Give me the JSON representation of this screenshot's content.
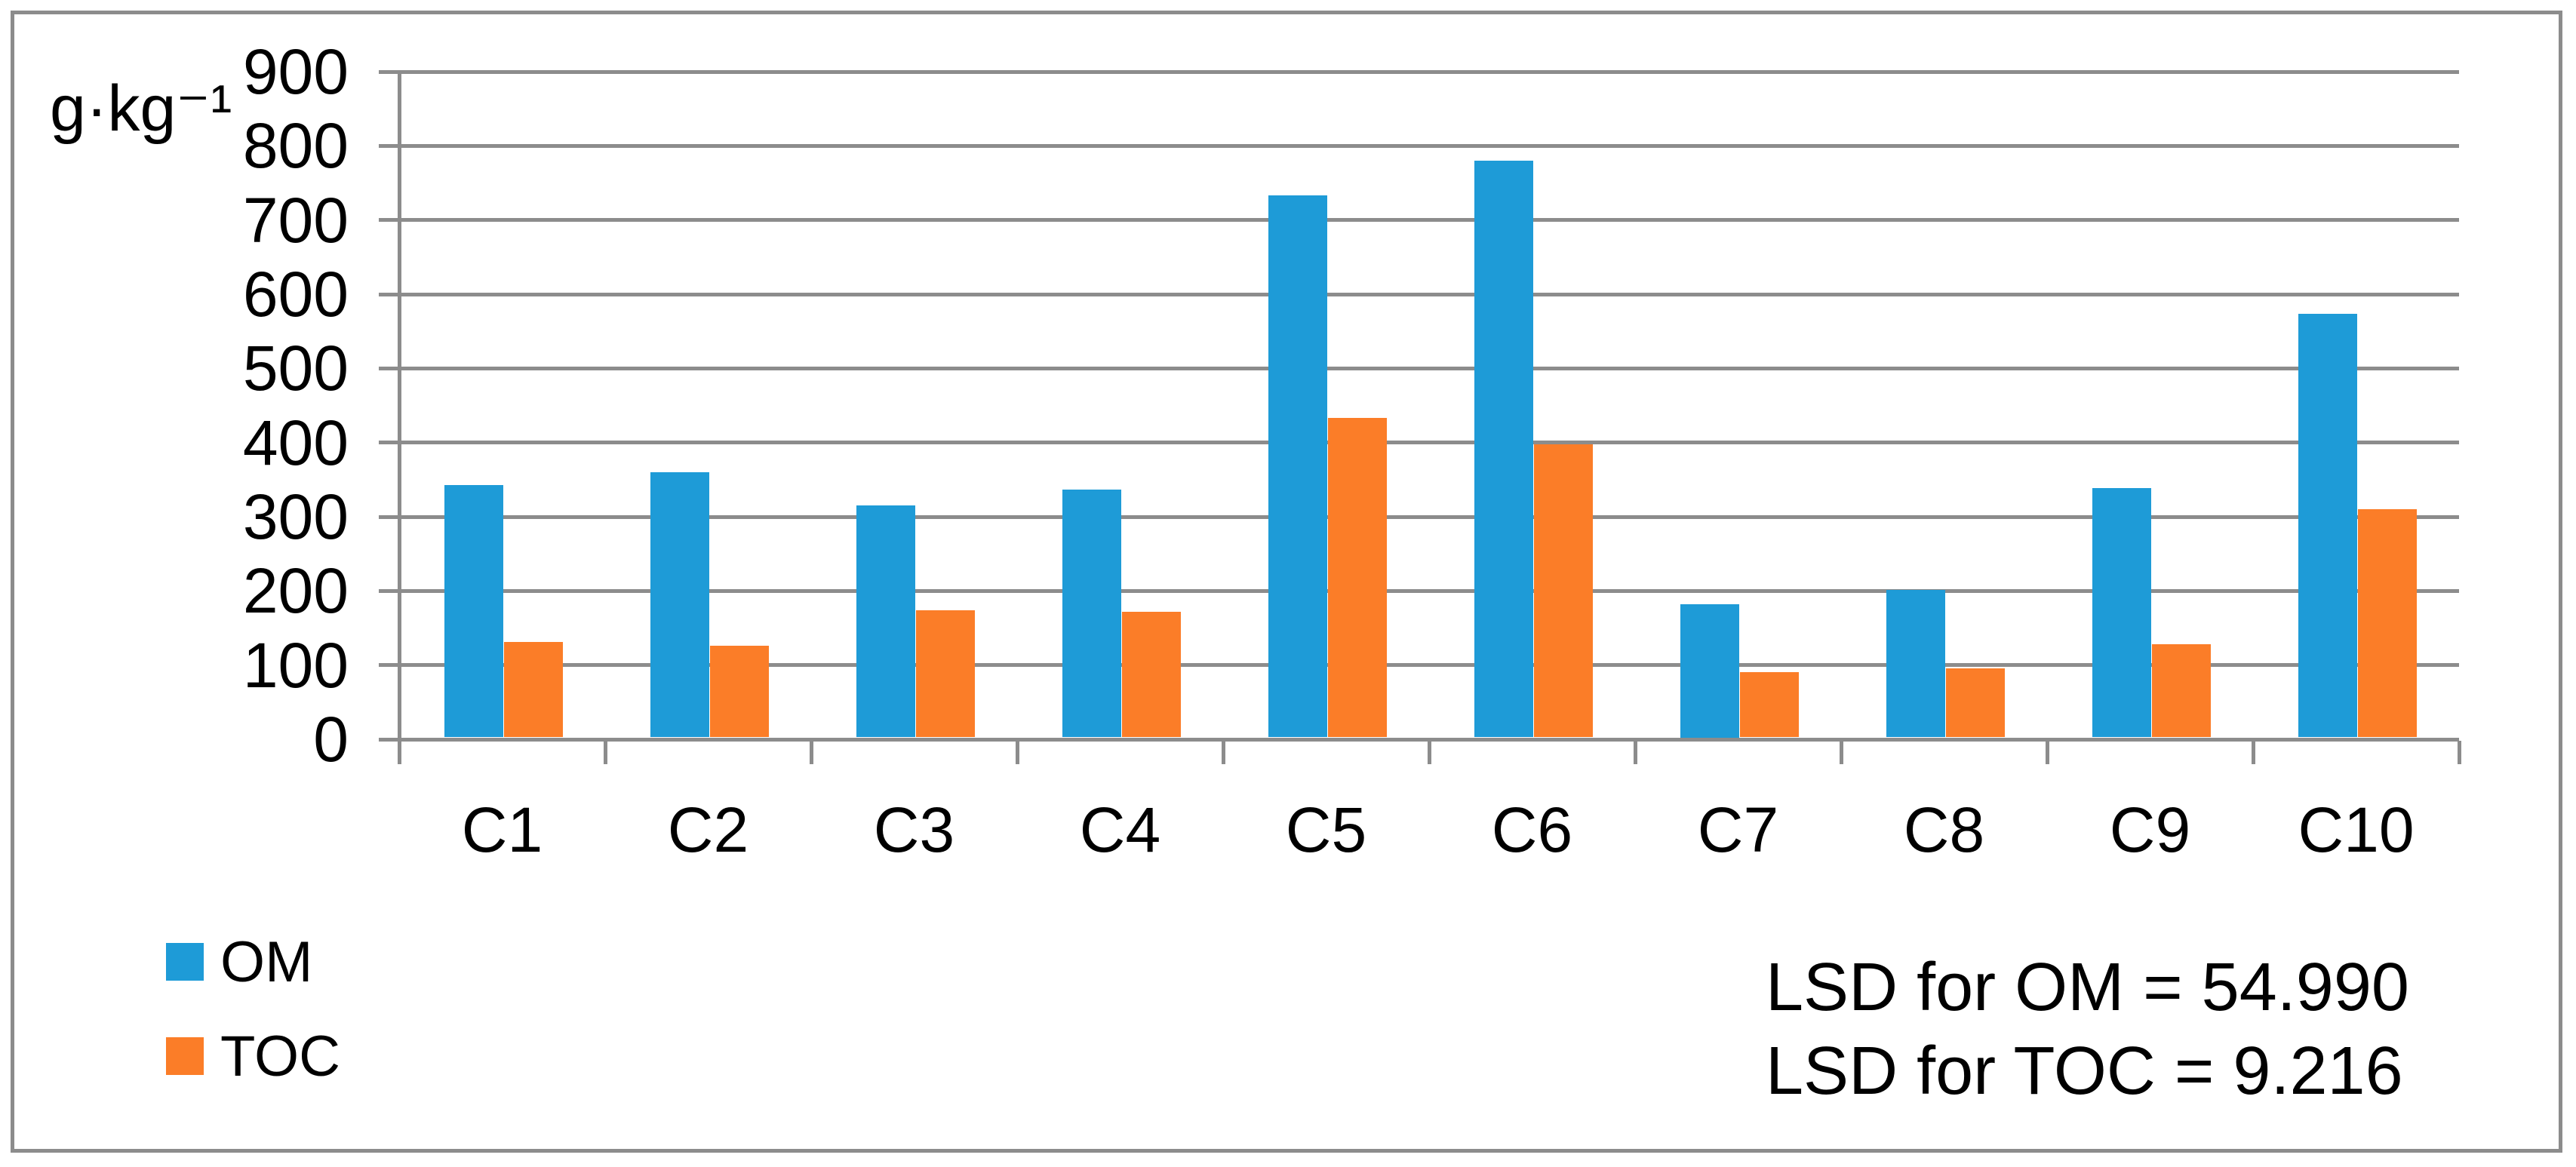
{
  "chart_data": {
    "type": "bar",
    "title": "",
    "ylabel": "g·kg⁻¹",
    "xlabel": "",
    "categories": [
      "C1",
      "C2",
      "C3",
      "C4",
      "C5",
      "C6",
      "C7",
      "C8",
      "C9",
      "C10"
    ],
    "series": [
      {
        "name": "OM",
        "color": "#1E9BD7",
        "values": [
          340,
          357,
          313,
          334,
          731,
          777,
          180,
          199,
          336,
          571
        ]
      },
      {
        "name": "TOC",
        "color": "#FB7D28",
        "values": [
          129,
          124,
          171,
          169,
          431,
          395,
          88,
          93,
          126,
          308
        ]
      }
    ],
    "ylim": [
      0,
      900
    ],
    "yticks": [
      0,
      100,
      200,
      300,
      400,
      500,
      600,
      700,
      800,
      900
    ],
    "grid": "horizontal-gridlines",
    "legend_position": "bottom-left"
  },
  "annotations": {
    "lines": [
      "LSD for OM = 54.990",
      "LSD for TOC = 9.216"
    ]
  },
  "colors": {
    "bar_om": "#1E9BD7",
    "bar_toc": "#FB7D28",
    "gridline": "#8C8C8C",
    "axis": "#8C8C8C",
    "figure_border": "#8C8C8C",
    "text": "#000000",
    "background": "#FFFFFF"
  }
}
